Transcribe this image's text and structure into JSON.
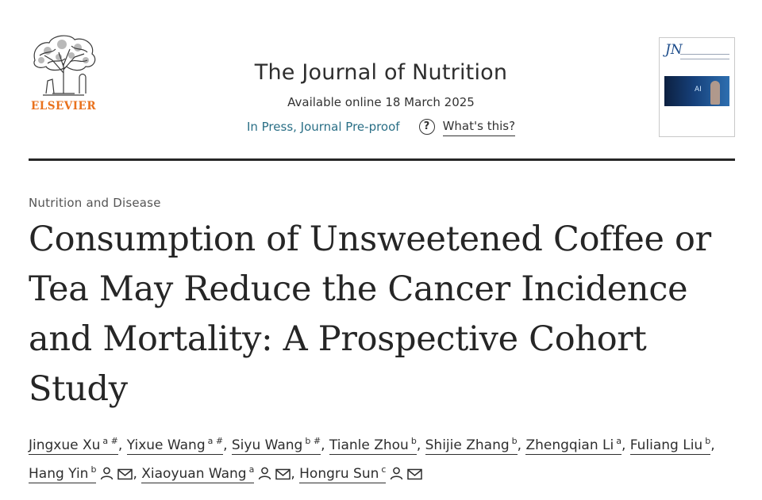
{
  "publisher": {
    "wordmark": "ELSEVIER",
    "logo_icon": "elsevier-tree-logo",
    "brand_color": "#e9711c"
  },
  "journal": {
    "name": "The Journal of Nutrition",
    "available_online": "Available online 18 March 2025",
    "status": "In Press, Journal Pre-proof",
    "help_icon": "question-circle-icon",
    "whats_this": "What's this?",
    "cover_abbrev": "JN",
    "cover_art_text": "AI",
    "status_color": "#2a6f86"
  },
  "article": {
    "section": "Nutrition and Disease",
    "title": "Consumption of Unsweetened Coffee or Tea May Reduce the Cancer Incidence and Mortality: A Prospective Cohort Study",
    "authors": [
      {
        "name": "Jingxue Xu",
        "affiliation": "a",
        "mark": "#"
      },
      {
        "name": "Yixue Wang",
        "affiliation": "a",
        "mark": "#"
      },
      {
        "name": "Siyu Wang",
        "affiliation": "b",
        "mark": "#"
      },
      {
        "name": "Tianle Zhou",
        "affiliation": "b"
      },
      {
        "name": "Shijie Zhang",
        "affiliation": "b"
      },
      {
        "name": "Zhengqian Li",
        "affiliation": "a"
      },
      {
        "name": "Fuliang Liu",
        "affiliation": "b"
      },
      {
        "name": "Hang Yin",
        "affiliation": "b",
        "icons": [
          "person-icon",
          "envelope-icon"
        ]
      },
      {
        "name": "Xiaoyuan Wang",
        "affiliation": "a",
        "icons": [
          "person-icon",
          "envelope-icon"
        ]
      },
      {
        "name": "Hongru Sun",
        "affiliation": "c",
        "icons": [
          "person-icon",
          "envelope-icon"
        ]
      }
    ],
    "separator": ","
  }
}
